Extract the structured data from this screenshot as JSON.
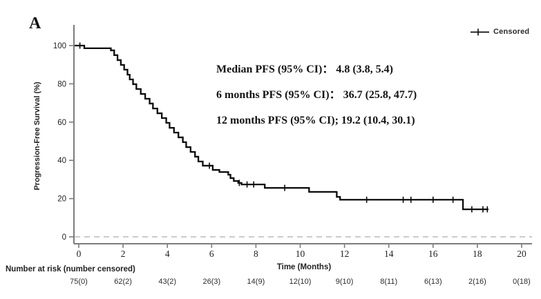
{
  "panel_label": "A",
  "legend": {
    "label": "Censored",
    "marker_icon": "censored-plus-line"
  },
  "annotation": {
    "lines": [
      "Median PFS (95% CI)： 4.8 (3.8, 5.4)",
      "6 months PFS (95% CI)： 36.7 (25.8, 47.7)",
      "12 months PFS (95% CI); 19.2 (10.4, 30.1)"
    ]
  },
  "risk_table": {
    "title": "Number at risk (number censored)",
    "times": [
      0,
      2,
      4,
      6,
      8,
      10,
      12,
      14,
      16,
      18,
      20
    ],
    "values": [
      "75(0)",
      "62(2)",
      "43(2)",
      "26(3)",
      "14(9)",
      "12(10)",
      "9(10)",
      "8(11)",
      "6(13)",
      "2(16)",
      "0(18)"
    ]
  },
  "chart_data": {
    "type": "line",
    "subtype": "kaplan-meier-step",
    "title": "",
    "xlabel": "Time (Months)",
    "ylabel": "Progression-Free Survival (%)",
    "xlim": [
      0,
      20
    ],
    "ylim": [
      0,
      100
    ],
    "x_ticks": [
      0,
      2,
      4,
      6,
      8,
      10,
      12,
      14,
      16,
      18,
      20
    ],
    "y_ticks": [
      0,
      20,
      40,
      60,
      80,
      100
    ],
    "grid": "dashed-zero-line-only",
    "legend_position": "top-right",
    "series": [
      {
        "name": "PFS",
        "end_time": 18.5,
        "points": [
          [
            0,
            100
          ],
          [
            0.25,
            98.6
          ],
          [
            1.45,
            97.5
          ],
          [
            1.6,
            95.0
          ],
          [
            1.75,
            92.4
          ],
          [
            1.9,
            89.9
          ],
          [
            2.05,
            87.4
          ],
          [
            2.2,
            84.8
          ],
          [
            2.3,
            82.3
          ],
          [
            2.45,
            79.8
          ],
          [
            2.6,
            77.3
          ],
          [
            2.8,
            74.7
          ],
          [
            3.0,
            72.2
          ],
          [
            3.2,
            69.7
          ],
          [
            3.35,
            67.1
          ],
          [
            3.55,
            64.6
          ],
          [
            3.75,
            62.1
          ],
          [
            3.95,
            59.6
          ],
          [
            4.1,
            57.0
          ],
          [
            4.3,
            54.5
          ],
          [
            4.5,
            52.0
          ],
          [
            4.7,
            49.5
          ],
          [
            4.85,
            46.9
          ],
          [
            5.05,
            44.4
          ],
          [
            5.25,
            41.9
          ],
          [
            5.4,
            39.4
          ],
          [
            5.6,
            37.2
          ],
          [
            6.05,
            35.0
          ],
          [
            6.35,
            33.9
          ],
          [
            6.75,
            32.5
          ],
          [
            6.85,
            30.7
          ],
          [
            7.0,
            29.2
          ],
          [
            7.2,
            28.2
          ],
          [
            7.35,
            27.4
          ],
          [
            8.4,
            25.6
          ],
          [
            10.4,
            23.5
          ],
          [
            11.65,
            20.9
          ],
          [
            11.8,
            19.4
          ],
          [
            17.35,
            14.4
          ]
        ]
      }
    ],
    "censor_marks": [
      [
        0.05,
        100
      ],
      [
        5.9,
        37.2
      ],
      [
        7.25,
        28.2
      ],
      [
        7.6,
        27.4
      ],
      [
        7.9,
        27.4
      ],
      [
        9.3,
        25.6
      ],
      [
        13.0,
        19.4
      ],
      [
        14.65,
        19.4
      ],
      [
        15.0,
        19.4
      ],
      [
        16.0,
        19.4
      ],
      [
        16.9,
        19.4
      ],
      [
        17.75,
        14.4
      ],
      [
        18.25,
        14.4
      ],
      [
        18.45,
        14.4
      ]
    ],
    "stats": {
      "median_pfs": "4.8 (3.8, 5.4)",
      "pfs_6_months": "36.7 (25.8, 47.7)",
      "pfs_12_months": "19.2 (10.4, 30.1)"
    }
  },
  "colors": {
    "curve": "#0a0a0a",
    "axis": "#7c7c7c",
    "zero_line": "#bababa",
    "tick_text": "#222222"
  }
}
